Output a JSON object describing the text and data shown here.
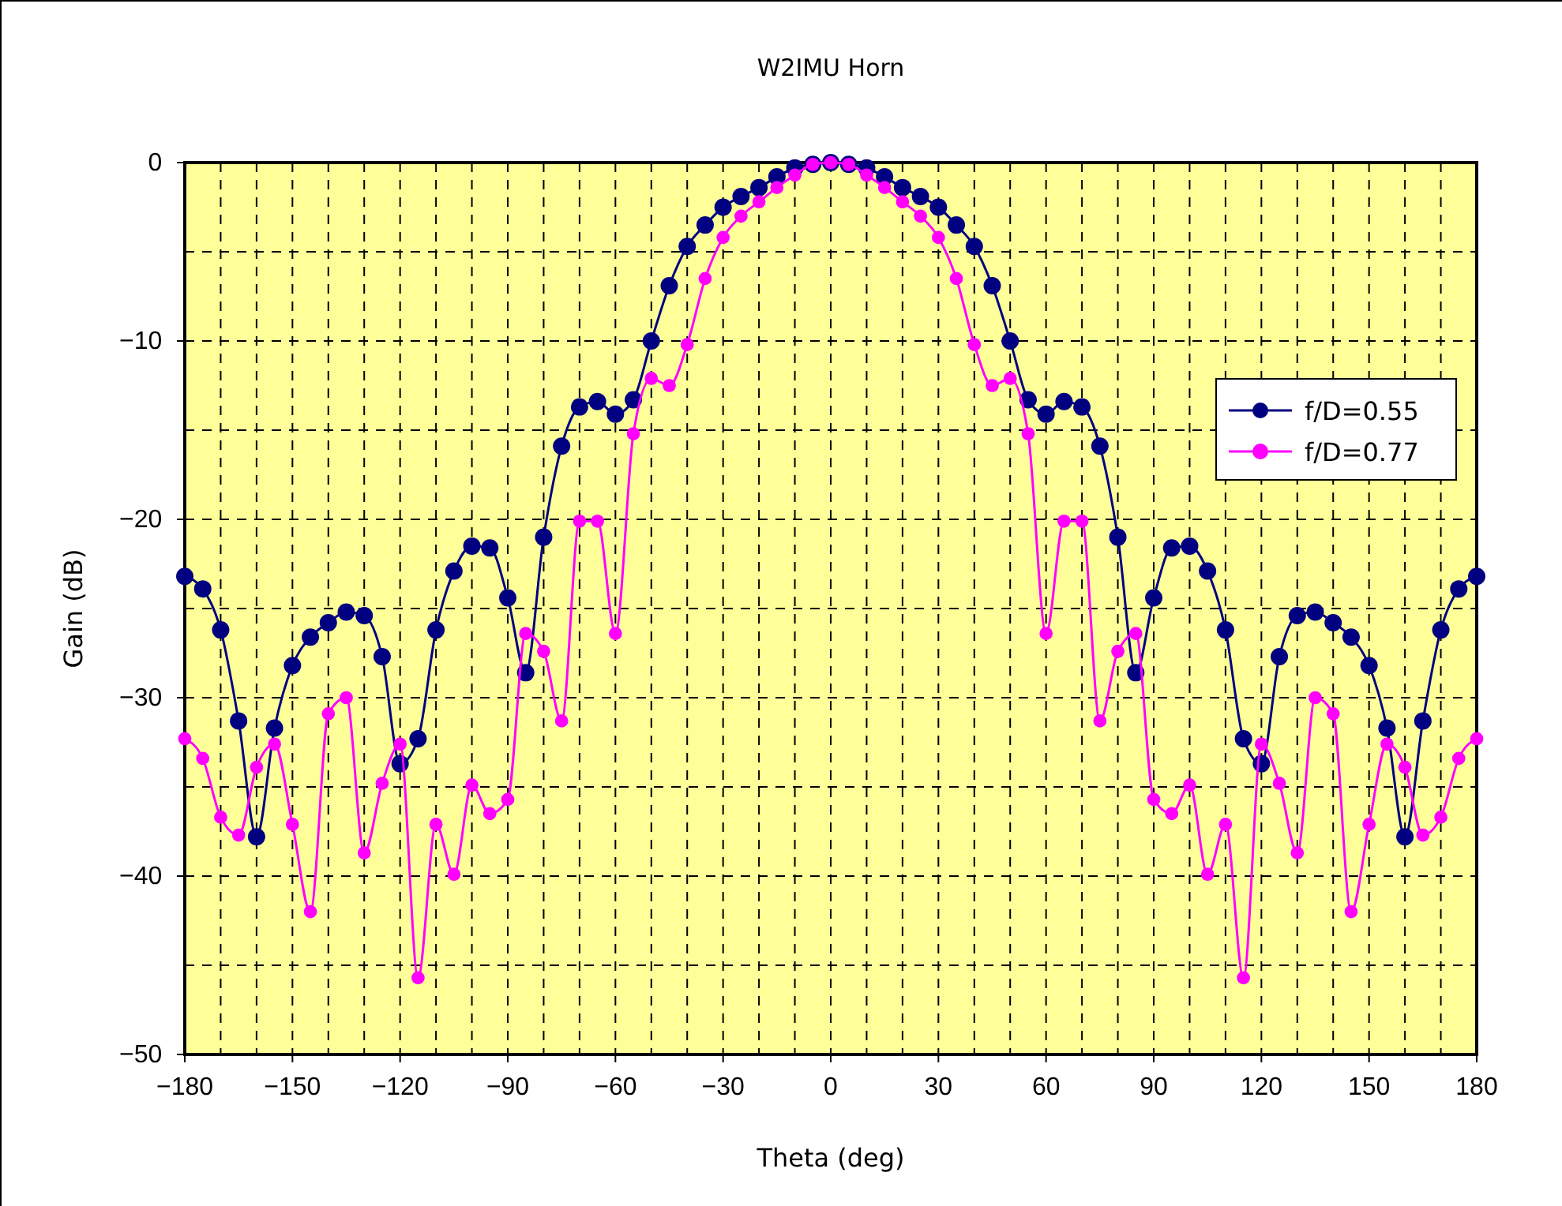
{
  "chart_data": {
    "type": "line",
    "title": "W2IMU Horn",
    "xlabel": "Theta (deg)",
    "ylabel": "Gain (dB)",
    "x": [
      -180,
      -175,
      -170,
      -165,
      -160,
      -155,
      -150,
      -145,
      -140,
      -135,
      -130,
      -125,
      -120,
      -115,
      -110,
      -105,
      -100,
      -95,
      -90,
      -85,
      -80,
      -75,
      -70,
      -65,
      -60,
      -55,
      -50,
      -45,
      -40,
      -35,
      -30,
      -25,
      -20,
      -15,
      -10,
      -5,
      0,
      5,
      10,
      15,
      20,
      25,
      30,
      35,
      40,
      45,
      50,
      55,
      60,
      65,
      70,
      75,
      80,
      85,
      90,
      95,
      100,
      105,
      110,
      115,
      120,
      125,
      130,
      135,
      140,
      145,
      150,
      155,
      160,
      165,
      170,
      175,
      180
    ],
    "series": [
      {
        "name": "f/D=0.55",
        "color": "#000080",
        "values": [
          -23.2,
          -23.9,
          -26.2,
          -31.3,
          -37.8,
          -31.7,
          -28.2,
          -26.6,
          -25.8,
          -25.2,
          -25.4,
          -27.7,
          -33.7,
          -32.3,
          -26.2,
          -22.9,
          -21.5,
          -21.6,
          -24.4,
          -28.6,
          -21.0,
          -15.9,
          -13.7,
          -13.4,
          -14.1,
          -13.3,
          -10.0,
          -6.9,
          -4.7,
          -3.5,
          -2.5,
          -1.9,
          -1.4,
          -0.8,
          -0.3,
          -0.1,
          0,
          -0.1,
          -0.3,
          -0.8,
          -1.4,
          -1.9,
          -2.5,
          -3.5,
          -4.7,
          -6.9,
          -10.0,
          -13.3,
          -14.1,
          -13.4,
          -13.7,
          -15.9,
          -21.0,
          -28.6,
          -24.4,
          -21.6,
          -21.5,
          -22.9,
          -26.2,
          -32.3,
          -33.7,
          -27.7,
          -25.4,
          -25.2,
          -25.8,
          -26.6,
          -28.2,
          -31.7,
          -37.8,
          -31.3,
          -26.2,
          -23.9,
          -23.2
        ]
      },
      {
        "name": "f/D=0.77",
        "color": "#ff00ff",
        "values": [
          -32.3,
          -33.4,
          -36.7,
          -37.7,
          -33.9,
          -32.6,
          -37.1,
          -42.0,
          -30.9,
          -30.0,
          -38.7,
          -34.8,
          -32.6,
          -45.7,
          -37.1,
          -39.9,
          -34.9,
          -36.5,
          -35.7,
          -26.4,
          -27.4,
          -31.3,
          -20.1,
          -20.1,
          -26.4,
          -15.2,
          -12.1,
          -12.5,
          -10.2,
          -6.5,
          -4.2,
          -3.0,
          -2.2,
          -1.4,
          -0.7,
          -0.1,
          0,
          -0.1,
          -0.7,
          -1.4,
          -2.2,
          -3.0,
          -4.2,
          -6.5,
          -10.2,
          -12.5,
          -12.1,
          -15.2,
          -26.4,
          -20.1,
          -20.1,
          -31.3,
          -27.4,
          -26.4,
          -35.7,
          -36.5,
          -34.9,
          -39.9,
          -37.1,
          -45.7,
          -32.6,
          -34.8,
          -38.7,
          -30.0,
          -30.9,
          -42.0,
          -37.1,
          -32.6,
          -33.9,
          -37.7,
          -36.7,
          -33.4,
          -32.3
        ]
      }
    ],
    "xlim": [
      -180,
      180
    ],
    "xticks": [
      -180,
      -150,
      -120,
      -90,
      -60,
      -30,
      0,
      30,
      60,
      90,
      120,
      150,
      180
    ],
    "ylim": [
      -50,
      0
    ],
    "yticks": [
      -50,
      -40,
      -30,
      -20,
      -10,
      0
    ],
    "grid": true,
    "legend": "right",
    "marker": "circle",
    "line_style": "solid"
  }
}
